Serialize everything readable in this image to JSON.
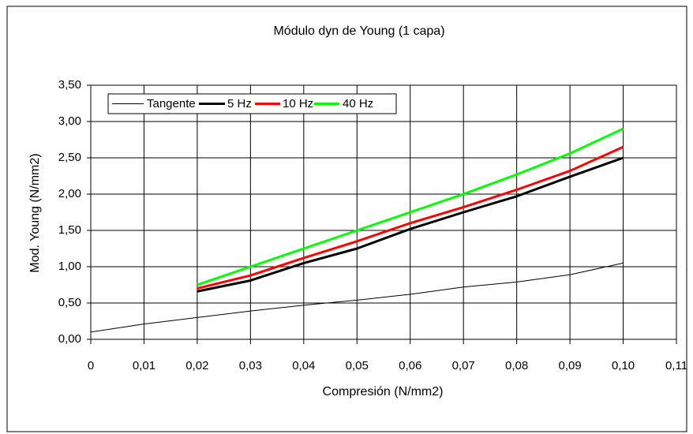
{
  "chart_data": {
    "type": "line",
    "title": "Módulo dyn de Young (1 capa)",
    "xlabel": "Compresión (N/mm2)",
    "ylabel": "Mod. Young (N/mm2)",
    "x": [
      0,
      0.01,
      0.02,
      0.03,
      0.04,
      0.05,
      0.06,
      0.07,
      0.08,
      0.09,
      0.1
    ],
    "series": [
      {
        "name": "Tangente",
        "color": "#000000",
        "values": [
          0.1,
          0.21,
          0.3,
          0.39,
          0.47,
          0.54,
          0.62,
          0.72,
          0.79,
          0.89,
          1.05
        ]
      },
      {
        "name": "5 Hz",
        "color": "#000000",
        "values": [
          null,
          null,
          0.66,
          0.81,
          1.05,
          1.25,
          1.52,
          1.75,
          1.97,
          2.24,
          2.5
        ]
      },
      {
        "name": "10 Hz",
        "color": "#ff0000",
        "values": [
          null,
          null,
          0.7,
          0.88,
          1.12,
          1.35,
          1.6,
          1.82,
          2.06,
          2.32,
          2.65
        ]
      },
      {
        "name": "40 Hz",
        "color": "#00ff00",
        "values": [
          null,
          null,
          0.75,
          1.0,
          1.25,
          1.5,
          1.75,
          2.0,
          2.27,
          2.56,
          2.9
        ]
      }
    ],
    "xlim": [
      0,
      0.11
    ],
    "xticks": [
      0,
      {
        "value": 0.01,
        "label": "0,01"
      },
      {
        "value": 0.02,
        "label": "0,02"
      },
      {
        "value": 0.03,
        "label": "0,03"
      },
      {
        "value": 0.04,
        "label": "0,04"
      },
      {
        "value": 0.05,
        "label": "0,05"
      },
      {
        "value": 0.06,
        "label": "0,06"
      },
      {
        "value": 0.07,
        "label": "0,07"
      },
      {
        "value": 0.08,
        "label": "0,08"
      },
      {
        "value": 0.09,
        "label": "0,09"
      },
      {
        "value": 0.1,
        "label": "0,10"
      },
      {
        "value": 0.11,
        "label": "0,11"
      }
    ],
    "ylim": [
      0,
      3.5
    ],
    "yticks": [
      {
        "value": 0,
        "label": "0,00"
      },
      {
        "value": 0.5,
        "label": "0,50"
      },
      {
        "value": 1,
        "label": "1,00"
      },
      {
        "value": 1.5,
        "label": "1,50"
      },
      {
        "value": 2,
        "label": "2,00"
      },
      {
        "value": 2.5,
        "label": "2,50"
      },
      {
        "value": 3,
        "label": "3,00"
      },
      {
        "value": 3.5,
        "label": "3,50"
      }
    ],
    "grid": true,
    "legend": "top-left"
  }
}
